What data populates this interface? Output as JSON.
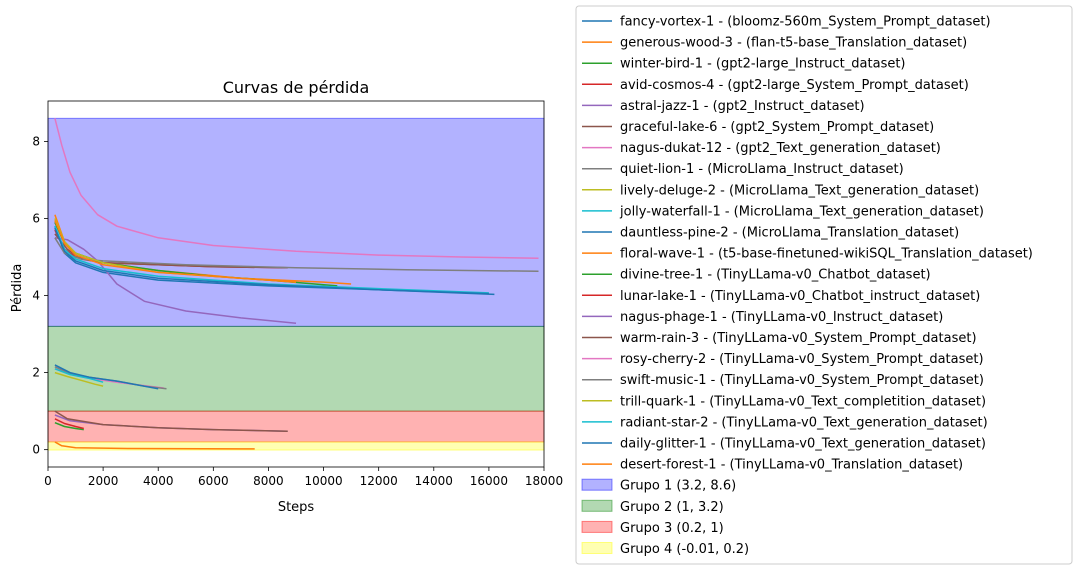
{
  "chart_data": {
    "type": "line",
    "title": "Curvas de pérdida",
    "xlabel": "Steps",
    "ylabel": "Pérdida",
    "xlim": [
      0,
      18000
    ],
    "ylim": [
      -0.45,
      9.05
    ],
    "xticks": [
      0,
      2000,
      4000,
      6000,
      8000,
      10000,
      12000,
      14000,
      16000,
      18000
    ],
    "yticks": [
      0,
      2,
      4,
      6,
      8
    ],
    "grid": false,
    "legend_position": "outside-right",
    "bands": [
      {
        "name": "Grupo 1 (3.2, 8.6)",
        "y0": 3.2,
        "y1": 8.6,
        "color": "#0000ff",
        "alpha": 0.3
      },
      {
        "name": "Grupo 2 (1, 3.2)",
        "y0": 1,
        "y1": 3.2,
        "color": "#008000",
        "alpha": 0.3
      },
      {
        "name": "Grupo 3 (0.2, 1)",
        "y0": 0.2,
        "y1": 1,
        "color": "#ff0000",
        "alpha": 0.3
      },
      {
        "name": "Grupo 4 (-0.01, 0.2)",
        "y0": -0.01,
        "y1": 0.2,
        "color": "#ffff00",
        "alpha": 0.3
      }
    ],
    "series": [
      {
        "name": "fancy-vortex-1 - (bloomz-560m_System_Prompt_dataset)",
        "color": "#1f77b4",
        "points": [
          [
            250,
            5.8
          ],
          [
            600,
            5.1
          ],
          [
            1000,
            4.85
          ],
          [
            2000,
            4.6
          ],
          [
            4000,
            4.4
          ],
          [
            8000,
            4.25
          ],
          [
            12000,
            4.15
          ],
          [
            16200,
            4.03
          ]
        ]
      },
      {
        "name": "generous-wood-3 - (flan-t5-base_Translation_dataset)",
        "color": "#ff7f0e",
        "points": [
          [
            250,
            6.1
          ],
          [
            600,
            5.4
          ],
          [
            1000,
            5.1
          ],
          [
            2000,
            4.85
          ],
          [
            4000,
            4.65
          ],
          [
            7000,
            4.45
          ],
          [
            10000,
            4.35
          ],
          [
            11000,
            4.3
          ]
        ]
      },
      {
        "name": "winter-bird-1 - (gpt2-large_Instruct_dataset)",
        "color": "#2ca02c",
        "points": [
          [
            250,
            5.9
          ],
          [
            600,
            5.35
          ],
          [
            1000,
            5.1
          ],
          [
            2000,
            4.85
          ],
          [
            4000,
            4.65
          ],
          [
            6000,
            4.5
          ],
          [
            8000,
            4.4
          ],
          [
            10500,
            4.25
          ]
        ]
      },
      {
        "name": "avid-cosmos-4 - (gpt2-large_System_Prompt_dataset)",
        "color": "#d62728",
        "points": [
          [
            250,
            5.7
          ],
          [
            600,
            5.2
          ],
          [
            1000,
            5.0
          ],
          [
            2000,
            4.85
          ],
          [
            4000,
            4.8
          ],
          [
            6000,
            4.75
          ],
          [
            8700,
            4.72
          ]
        ]
      },
      {
        "name": "astral-jazz-1 - (gpt2_Instruct_dataset)",
        "color": "#9467bd",
        "points": [
          [
            250,
            5.5
          ],
          [
            700,
            5.45
          ],
          [
            1300,
            5.2
          ],
          [
            1800,
            4.9
          ],
          [
            2500,
            4.3
          ],
          [
            3500,
            3.85
          ],
          [
            5000,
            3.6
          ],
          [
            7000,
            3.42
          ],
          [
            9000,
            3.28
          ]
        ]
      },
      {
        "name": "graceful-lake-6 - (gpt2_System_Prompt_dataset)",
        "color": "#8c564b",
        "points": [
          [
            250,
            5.6
          ],
          [
            700,
            5.2
          ],
          [
            1200,
            4.95
          ],
          [
            2000,
            4.85
          ],
          [
            4000,
            4.8
          ],
          [
            6000,
            4.75
          ],
          [
            8700,
            4.72
          ]
        ]
      },
      {
        "name": "nagus-dukat-12 - (gpt2_Text_generation_dataset)",
        "color": "#e377c2",
        "points": [
          [
            250,
            8.6
          ],
          [
            500,
            7.9
          ],
          [
            800,
            7.2
          ],
          [
            1200,
            6.6
          ],
          [
            1800,
            6.1
          ],
          [
            2500,
            5.8
          ],
          [
            4000,
            5.5
          ],
          [
            6000,
            5.3
          ],
          [
            9000,
            5.15
          ],
          [
            12000,
            5.05
          ],
          [
            15000,
            5.0
          ],
          [
            17800,
            4.97
          ]
        ]
      },
      {
        "name": "quiet-lion-1 - (MicroLlama_Instruct_dataset)",
        "color": "#7f7f7f",
        "points": [
          [
            250,
            5.5
          ],
          [
            600,
            5.1
          ],
          [
            1200,
            4.95
          ],
          [
            2000,
            4.9
          ],
          [
            5000,
            4.8
          ],
          [
            9000,
            4.72
          ],
          [
            13000,
            4.67
          ],
          [
            17800,
            4.63
          ]
        ]
      },
      {
        "name": "lively-deluge-2 - (MicroLlama_Text_generation_dataset)",
        "color": "#bcbd22",
        "points": [
          [
            250,
            6.0
          ],
          [
            600,
            5.4
          ],
          [
            1000,
            5.1
          ],
          [
            2000,
            4.85
          ],
          [
            4000,
            4.6
          ],
          [
            7000,
            4.45
          ],
          [
            9000,
            4.35
          ]
        ]
      },
      {
        "name": "jolly-waterfall-1 - (MicroLlama_Text_generation_dataset)",
        "color": "#17becf",
        "points": [
          [
            250,
            5.8
          ],
          [
            600,
            5.2
          ],
          [
            1000,
            4.95
          ],
          [
            2000,
            4.7
          ],
          [
            4000,
            4.5
          ],
          [
            8000,
            4.3
          ],
          [
            12000,
            4.18
          ],
          [
            16000,
            4.07
          ]
        ]
      },
      {
        "name": "dauntless-pine-2 - (MicroLlama_Translation_dataset)",
        "color": "#1f77b4",
        "points": [
          [
            250,
            5.75
          ],
          [
            600,
            5.15
          ],
          [
            1000,
            4.9
          ],
          [
            2000,
            4.65
          ],
          [
            4000,
            4.45
          ],
          [
            8000,
            4.28
          ],
          [
            12000,
            4.15
          ],
          [
            16000,
            4.05
          ]
        ]
      },
      {
        "name": "floral-wave-1 - (t5-base-finetuned-wikiSQL_Translation_dataset)",
        "color": "#ff7f0e",
        "points": [
          [
            250,
            5.95
          ],
          [
            600,
            5.35
          ],
          [
            1000,
            5.05
          ],
          [
            2000,
            4.8
          ],
          [
            4000,
            4.6
          ],
          [
            7000,
            4.45
          ],
          [
            9000,
            4.35
          ]
        ]
      },
      {
        "name": "divine-tree-1 - (TinyLLama-v0_Chatbot_dataset)",
        "color": "#2ca02c",
        "points": [
          [
            250,
            0.7
          ],
          [
            600,
            0.6
          ],
          [
            1000,
            0.55
          ],
          [
            1300,
            0.52
          ]
        ]
      },
      {
        "name": "lunar-lake-1 - (TinyLLama-v0_Chatbot_instruct_dataset)",
        "color": "#d62728",
        "points": [
          [
            250,
            0.8
          ],
          [
            600,
            0.68
          ],
          [
            1000,
            0.6
          ],
          [
            1300,
            0.55
          ]
        ]
      },
      {
        "name": "nagus-phage-1 - (TinyLLama-v0_Instruct_dataset)",
        "color": "#9467bd",
        "points": [
          [
            250,
            0.9
          ],
          [
            800,
            0.75
          ],
          [
            2000,
            0.65
          ],
          [
            4000,
            0.57
          ],
          [
            6000,
            0.52
          ],
          [
            8700,
            0.48
          ]
        ]
      },
      {
        "name": "warm-rain-3 - (TinyLLama-v0_System_Prompt_dataset)",
        "color": "#8c564b",
        "points": [
          [
            250,
            1.0
          ],
          [
            700,
            0.8
          ],
          [
            2000,
            0.65
          ],
          [
            4000,
            0.57
          ],
          [
            6000,
            0.52
          ],
          [
            8700,
            0.48
          ]
        ]
      },
      {
        "name": "rosy-cherry-2 - (TinyLLama-v0_System_Prompt_dataset)",
        "color": "#e377c2",
        "points": [
          [
            250,
            2.1
          ],
          [
            800,
            1.95
          ],
          [
            1500,
            1.85
          ],
          [
            2500,
            1.75
          ],
          [
            4200,
            1.6
          ]
        ]
      },
      {
        "name": "swift-music-1 - (TinyLLama-v0_System_Prompt_dataset)",
        "color": "#7f7f7f",
        "points": [
          [
            250,
            2.15
          ],
          [
            800,
            1.98
          ],
          [
            1500,
            1.88
          ],
          [
            2500,
            1.78
          ],
          [
            3500,
            1.65
          ],
          [
            4300,
            1.58
          ]
        ]
      },
      {
        "name": "trill-quark-1 - (TinyLLama-v0_Text_completition_dataset)",
        "color": "#bcbd22",
        "points": [
          [
            250,
            2.0
          ],
          [
            700,
            1.9
          ],
          [
            1200,
            1.8
          ],
          [
            1700,
            1.7
          ],
          [
            2000,
            1.65
          ]
        ]
      },
      {
        "name": "radiant-star-2 - (TinyLLama-v0_Text_generation_dataset)",
        "color": "#17becf",
        "points": [
          [
            250,
            2.1
          ],
          [
            800,
            1.95
          ],
          [
            1500,
            1.85
          ],
          [
            2000,
            1.75
          ]
        ]
      },
      {
        "name": "daily-glitter-1 - (TinyLLama-v0_Text_generation_dataset)",
        "color": "#1f77b4",
        "points": [
          [
            250,
            2.2
          ],
          [
            800,
            2.0
          ],
          [
            1500,
            1.88
          ],
          [
            2500,
            1.78
          ],
          [
            4000,
            1.58
          ]
        ]
      },
      {
        "name": "desert-forest-1 - (TinyLLama-v0_Translation_dataset)",
        "color": "#ff7f0e",
        "points": [
          [
            250,
            0.2
          ],
          [
            500,
            0.1
          ],
          [
            1000,
            0.05
          ],
          [
            3000,
            0.03
          ],
          [
            7000,
            0.02
          ],
          [
            7500,
            0.02
          ]
        ]
      }
    ]
  }
}
